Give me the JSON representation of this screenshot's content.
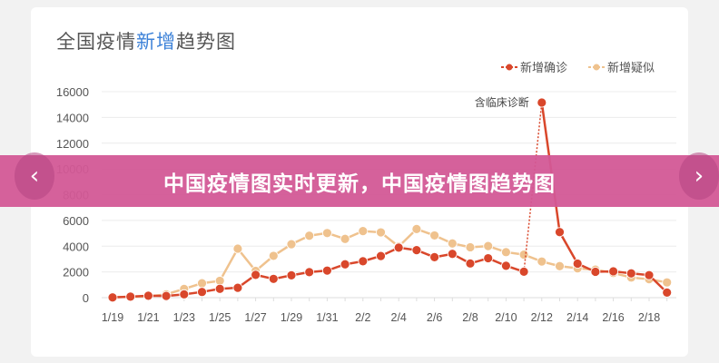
{
  "title_part1": "全国疫情",
  "title_highlight": "新增",
  "title_part2": "趋势图",
  "banner_text": "中国疫情图实时更新，中国疫情图趋势图",
  "nav": {
    "prev_icon": "chevron-left-icon",
    "next_icon": "chevron-right-icon"
  },
  "chart_data": {
    "type": "line",
    "title": "全国疫情新增趋势图",
    "ylim": [
      0,
      16000
    ],
    "yticks": [
      0,
      2000,
      4000,
      6000,
      8000,
      10000,
      12000,
      14000,
      16000
    ],
    "grid": true,
    "legend_position": "top-right",
    "x": [
      "1/19",
      "1/20",
      "1/21",
      "1/22",
      "1/23",
      "1/24",
      "1/25",
      "1/26",
      "1/27",
      "1/28",
      "1/29",
      "1/30",
      "1/31",
      "2/1",
      "2/2",
      "2/3",
      "2/4",
      "2/5",
      "2/6",
      "2/7",
      "2/8",
      "2/9",
      "2/10",
      "2/11",
      "2/12",
      "2/13",
      "2/14",
      "2/15",
      "2/16",
      "2/17",
      "2/18",
      "2/19"
    ],
    "xtick_labels": [
      "1/19",
      "1/21",
      "1/23",
      "1/25",
      "1/27",
      "1/29",
      "1/31",
      "2/2",
      "2/4",
      "2/6",
      "2/8",
      "2/10",
      "2/12",
      "2/14",
      "2/16",
      "2/18"
    ],
    "series": [
      {
        "name": "新增确诊",
        "color": "#d9472b",
        "values": [
          17,
          77,
          149,
          131,
          259,
          444,
          688,
          769,
          1771,
          1459,
          1737,
          1982,
          2102,
          2590,
          2829,
          3235,
          3887,
          3694,
          3143,
          3399,
          2656,
          3062,
          2478,
          2015,
          15152,
          5090,
          2641,
          2009,
          2048,
          1886,
          1749,
          394
        ]
      },
      {
        "name": "新增疑似",
        "color": "#efc28e",
        "values": [
          50,
          60,
          100,
          257,
          680,
          1118,
          1309,
          3806,
          2077,
          3248,
          4148,
          4812,
          5019,
          4562,
          5173,
          5072,
          3971,
          5328,
          4833,
          4214,
          3916,
          4008,
          3536,
          3342,
          2807,
          2450,
          2277,
          2174,
          1918,
          1563,
          1432,
          1185
        ]
      }
    ],
    "annotation": {
      "text": "含临床诊断",
      "date": "2/12",
      "series": "新增确诊"
    }
  }
}
